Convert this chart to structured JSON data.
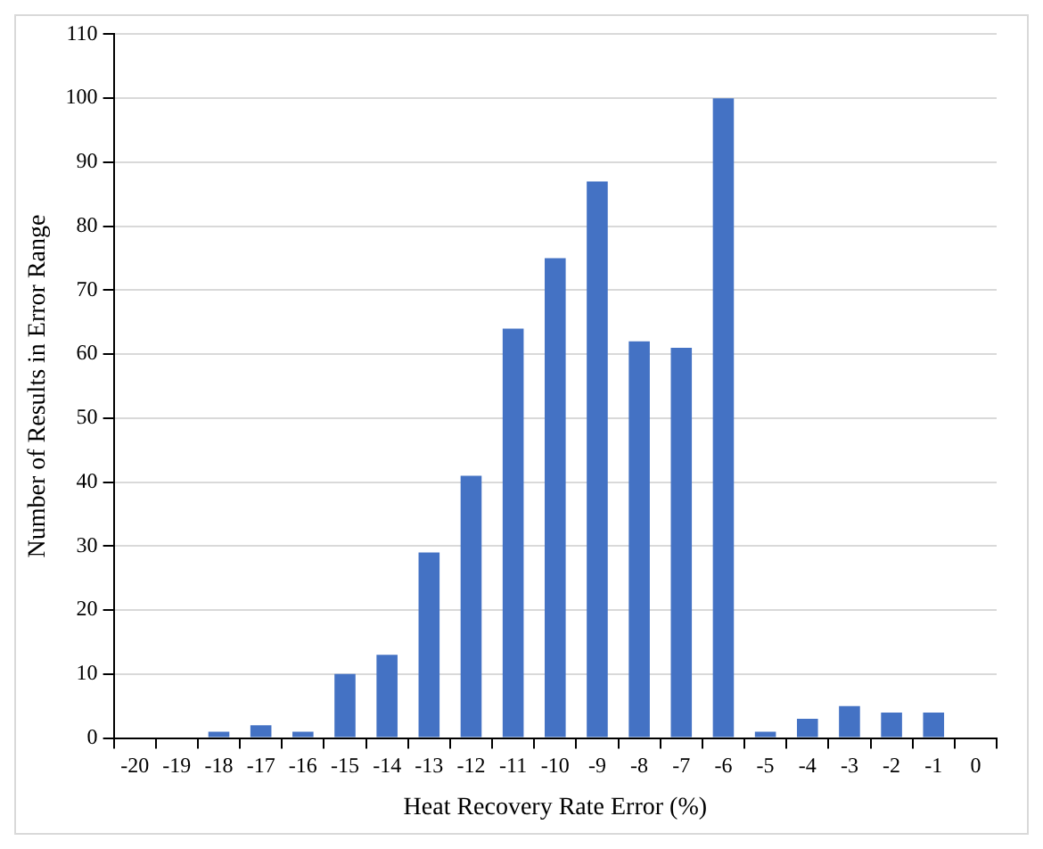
{
  "chart_data": {
    "type": "bar",
    "xlabel": "Heat Recovery Rate Error (%)",
    "ylabel": "Number of Results in Error Range",
    "categories": [
      "-20",
      "-19",
      "-18",
      "-17",
      "-16",
      "-15",
      "-14",
      "-13",
      "-12",
      "-11",
      "-10",
      "-9",
      "-8",
      "-7",
      "-6",
      "-5",
      "-4",
      "-3",
      "-2",
      "-1",
      "0"
    ],
    "values": [
      0,
      0,
      1,
      2,
      1,
      10,
      13,
      29,
      41,
      64,
      75,
      87,
      62,
      61,
      100,
      1,
      3,
      5,
      4,
      4,
      0
    ],
    "color": "#4472c4",
    "ylim": [
      0,
      110
    ],
    "yticks": [
      0,
      10,
      20,
      30,
      40,
      50,
      60,
      70,
      80,
      90,
      100,
      110
    ],
    "grid": "y",
    "legend": false
  }
}
